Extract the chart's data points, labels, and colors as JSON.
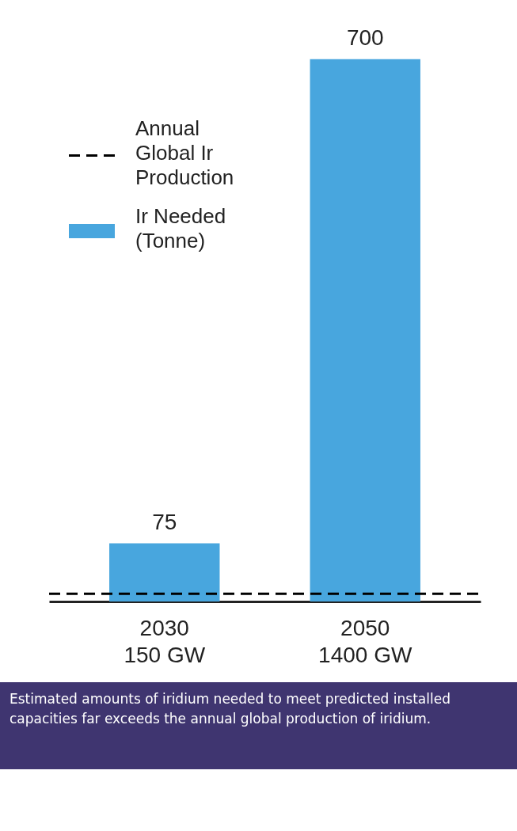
{
  "chart_data": {
    "type": "bar",
    "categories": [
      "2030\n150 GW",
      "2050\n1400 GW"
    ],
    "series": [
      {
        "name": "Ir Needed (Tonne)",
        "color": "#48a6de",
        "values": [
          75,
          700
        ]
      }
    ],
    "data_labels": true,
    "ref_lines": [
      {
        "axis": "y",
        "value": 10,
        "label": "Annual Global Ir Production",
        "color": "#000000",
        "line_style": "dashed"
      }
    ],
    "legend": "top left",
    "grid": false,
    "annotations": [
      "Estimated amounts of iridium needed to meet predicted installed capacities far exceeds the annual global production of iridium."
    ]
  }
}
